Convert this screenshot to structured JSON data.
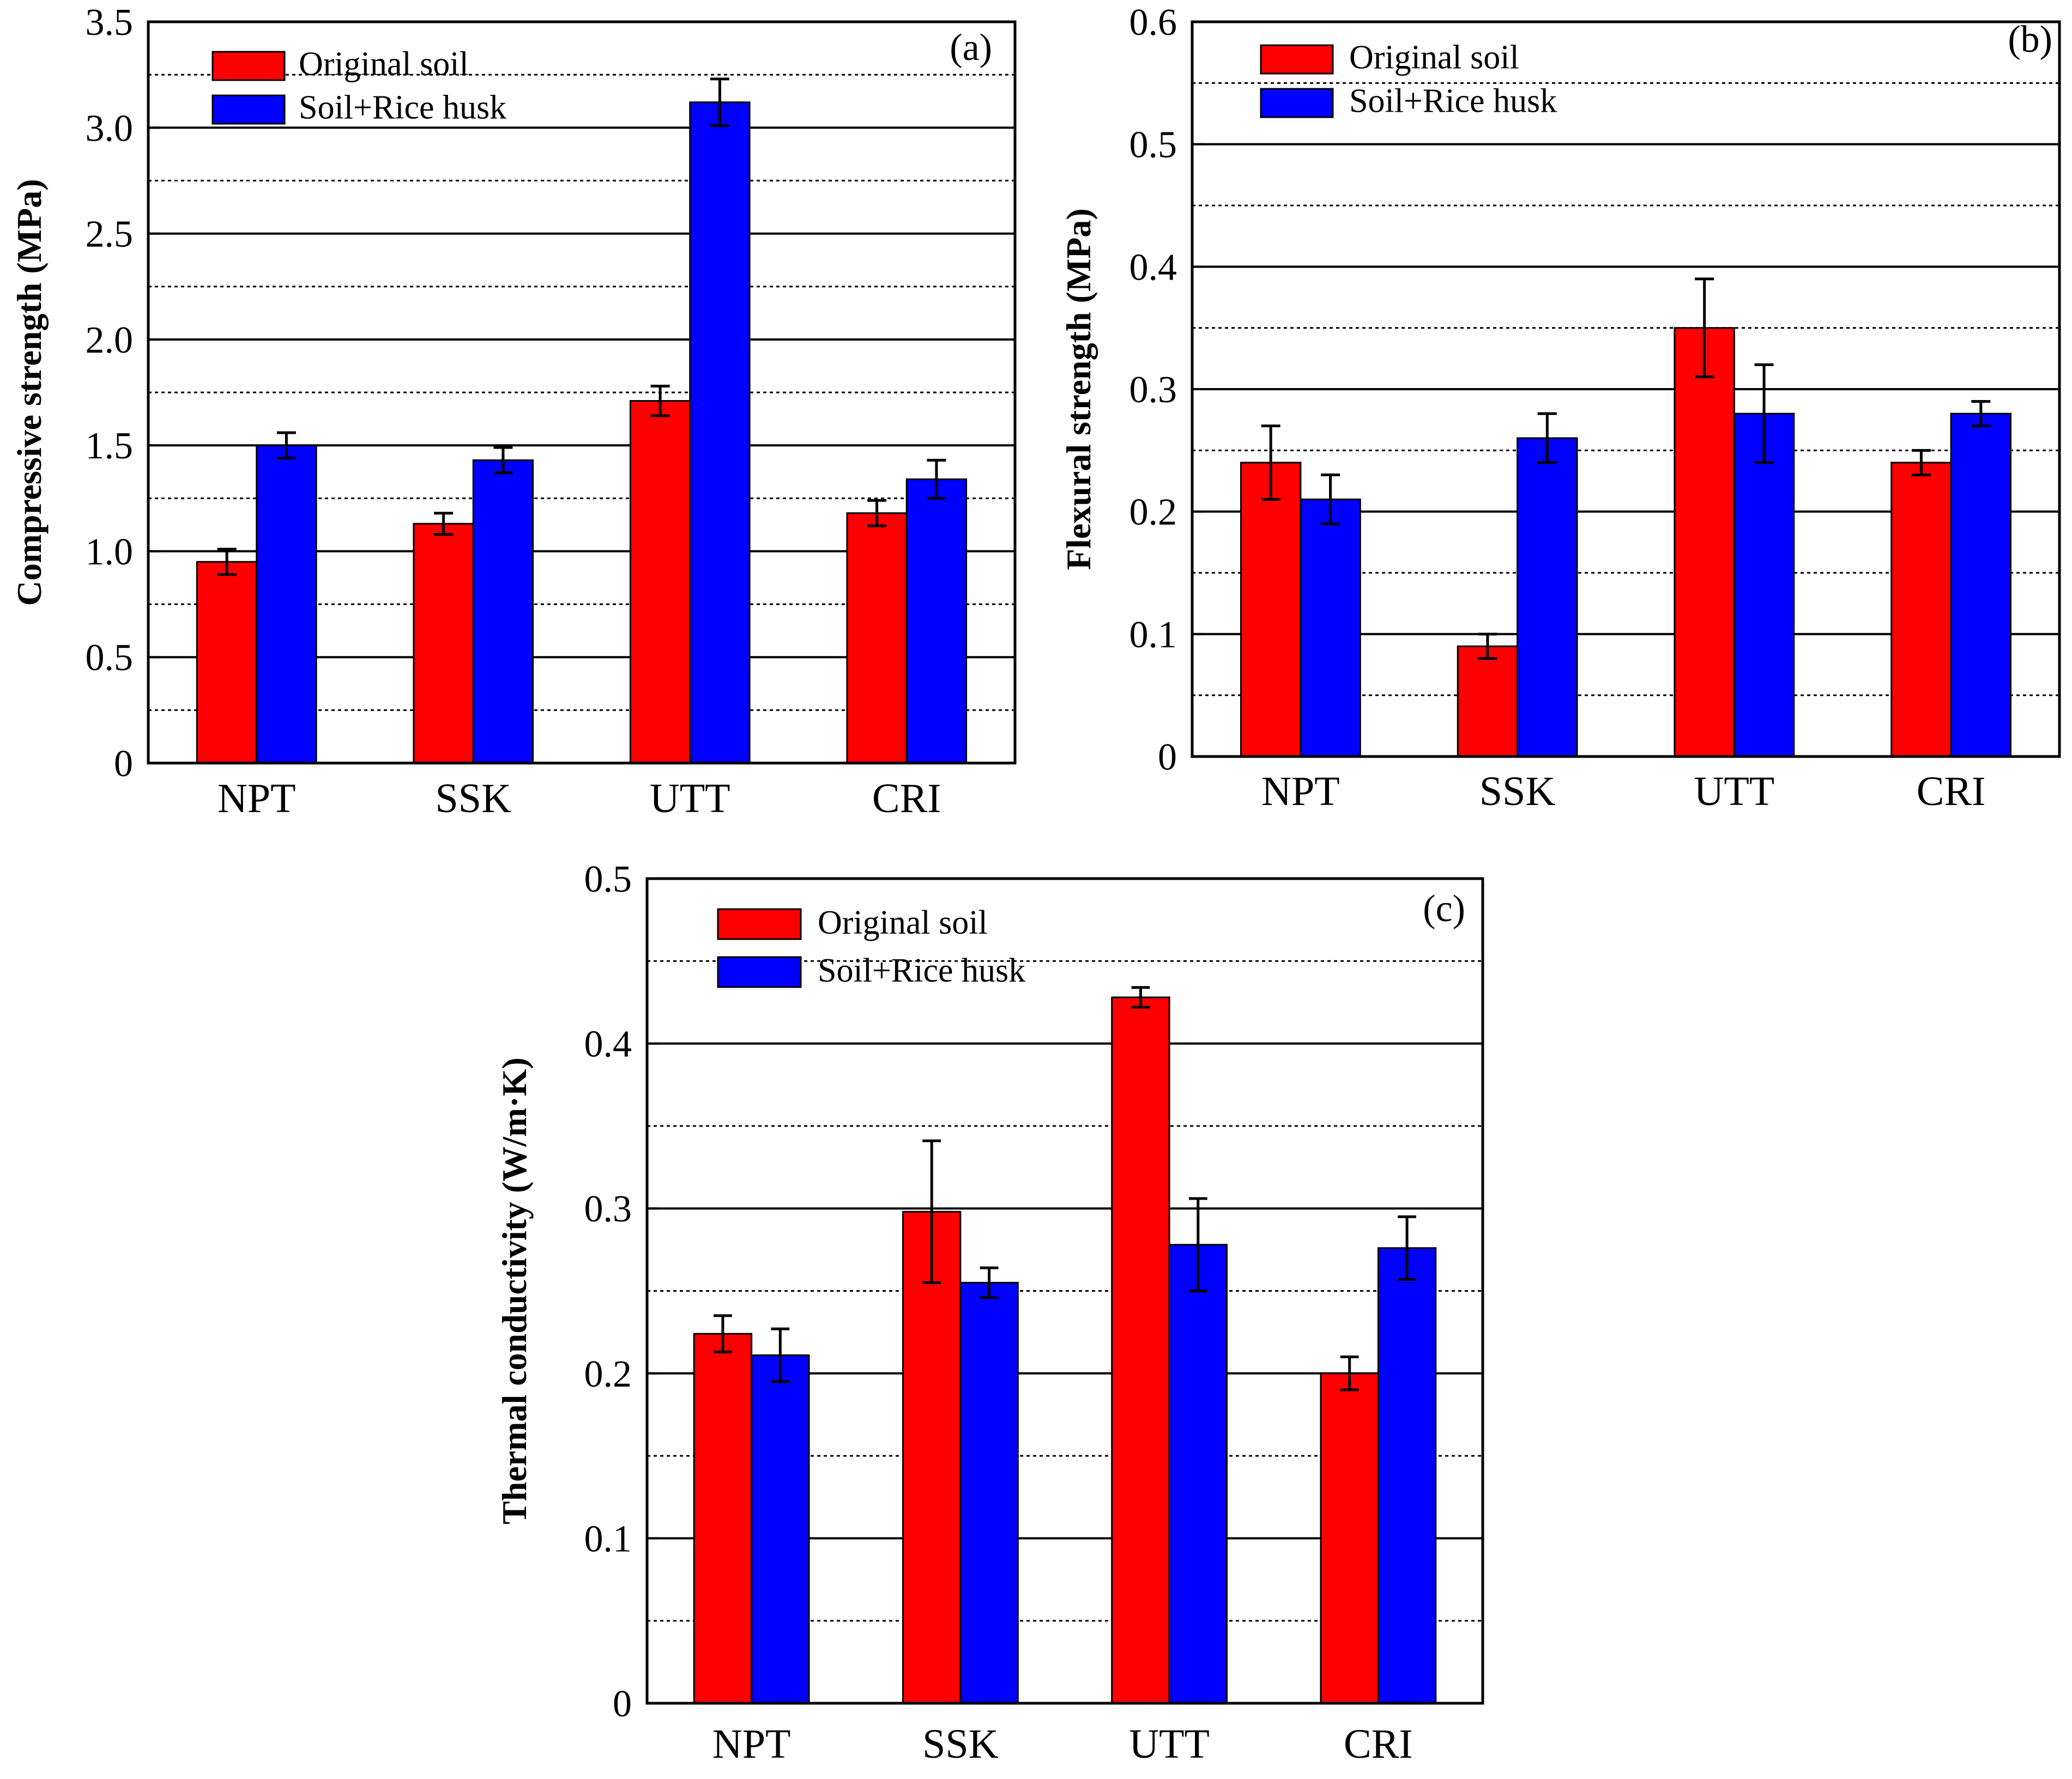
{
  "series_colors": {
    "original": "#ff0000",
    "rice": "#0000ff"
  },
  "chart_data": [
    {
      "type": "bar",
      "panel_label": "(a)",
      "categories": [
        "NPT",
        "SSK",
        "UTT",
        "CRI"
      ],
      "ylabel": "Compressive strength (MPa)",
      "ylim": [
        0,
        3.5
      ],
      "yticks": [
        0,
        0.5,
        1.0,
        1.5,
        2.0,
        2.5,
        3.0,
        3.5
      ],
      "ytick_labels": [
        "0",
        "0.5",
        "1.0",
        "1.5",
        "2.0",
        "2.5",
        "3.0",
        "3.5"
      ],
      "grid": "major solid, minor dotted",
      "legend_position": "top-left",
      "series": [
        {
          "name": "Original soil",
          "values": [
            0.95,
            1.13,
            1.71,
            1.18
          ],
          "errors": [
            0.06,
            0.05,
            0.07,
            0.06
          ]
        },
        {
          "name": "Soil+Rice husk",
          "values": [
            1.5,
            1.43,
            3.12,
            1.34
          ],
          "errors": [
            0.06,
            0.06,
            0.11,
            0.09
          ]
        }
      ]
    },
    {
      "type": "bar",
      "panel_label": "(b)",
      "categories": [
        "NPT",
        "SSK",
        "UTT",
        "CRI"
      ],
      "ylabel": "Flexural strength (MPa)",
      "ylim": [
        0,
        0.6
      ],
      "yticks": [
        0,
        0.1,
        0.2,
        0.3,
        0.4,
        0.5,
        0.6
      ],
      "ytick_labels": [
        "0",
        "0.1",
        "0.2",
        "0.3",
        "0.4",
        "0.5",
        "0.6"
      ],
      "grid": "major solid, minor dotted",
      "legend_position": "top-left",
      "series": [
        {
          "name": "Original soil",
          "values": [
            0.24,
            0.09,
            0.35,
            0.24
          ],
          "errors": [
            0.03,
            0.01,
            0.04,
            0.01
          ]
        },
        {
          "name": "Soil+Rice husk",
          "values": [
            0.21,
            0.26,
            0.28,
            0.28
          ],
          "errors": [
            0.02,
            0.02,
            0.04,
            0.01
          ]
        }
      ]
    },
    {
      "type": "bar",
      "panel_label": "(c)",
      "categories": [
        "NPT",
        "SSK",
        "UTT",
        "CRI"
      ],
      "ylabel": "Thermal conductivity (W/m·K)",
      "ylim": [
        0,
        0.5
      ],
      "yticks": [
        0,
        0.1,
        0.2,
        0.3,
        0.4,
        0.5
      ],
      "ytick_labels": [
        "0",
        "0.1",
        "0.2",
        "0.3",
        "0.4",
        "0.5"
      ],
      "grid": "major solid, minor dotted",
      "legend_position": "top-left",
      "series": [
        {
          "name": "Original soil",
          "values": [
            0.224,
            0.298,
            0.428,
            0.2
          ],
          "errors": [
            0.011,
            0.043,
            0.006,
            0.01
          ]
        },
        {
          "name": "Soil+Rice husk",
          "values": [
            0.211,
            0.255,
            0.278,
            0.276
          ],
          "errors": [
            0.016,
            0.009,
            0.028,
            0.019
          ]
        }
      ]
    }
  ]
}
